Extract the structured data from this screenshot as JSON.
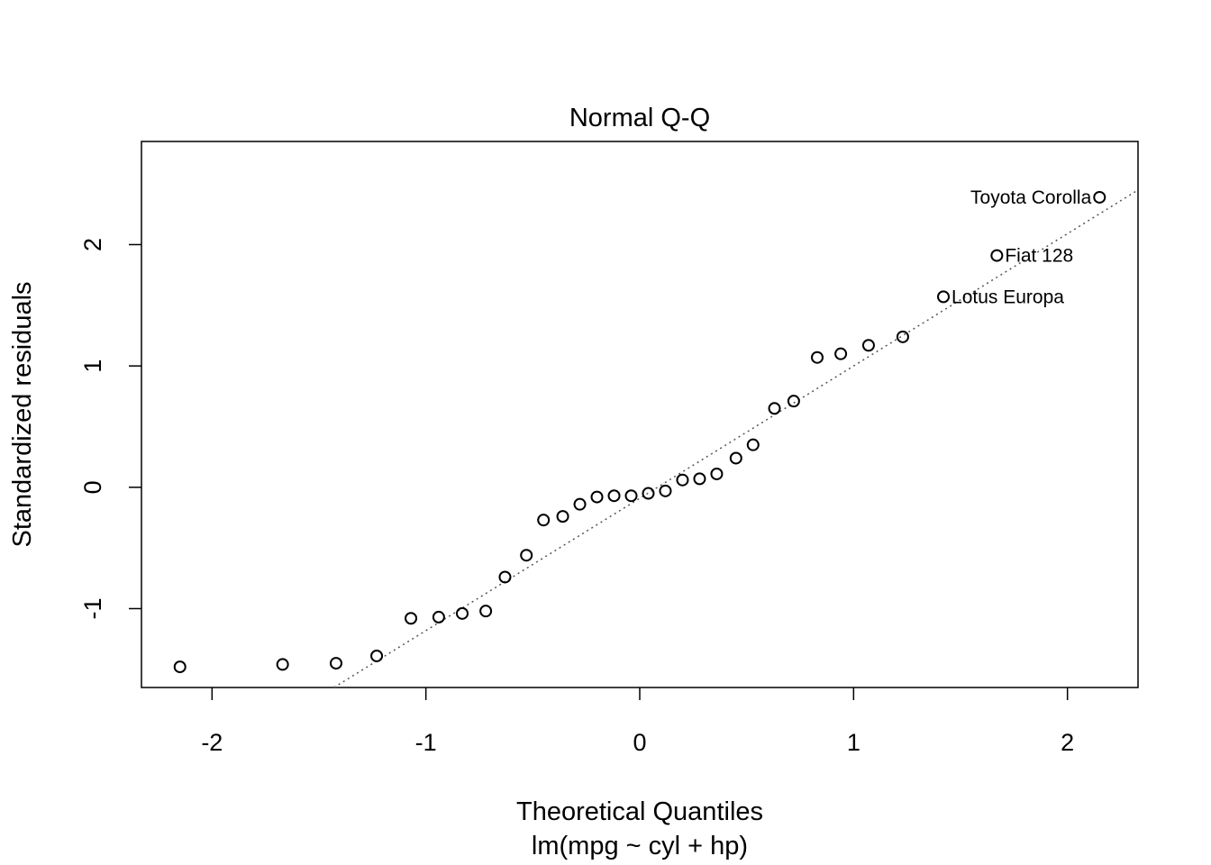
{
  "chart_data": {
    "type": "scatter",
    "title": "Normal Q-Q",
    "xlabel": "Theoretical Quantiles",
    "subtitle": "lm(mpg ~ cyl + hp)",
    "ylabel": "Standardized residuals",
    "xlim": [
      -2.33,
      2.33
    ],
    "ylim": [
      -1.65,
      2.85
    ],
    "xticks": [
      -2,
      -1,
      0,
      1,
      2
    ],
    "xtick_labels": [
      "-2",
      "-1",
      "0",
      "1",
      "2"
    ],
    "yticks": [
      -1,
      0,
      1,
      2
    ],
    "ytick_labels": [
      "-1",
      "0",
      "1",
      "2"
    ],
    "reference_line": {
      "style": "dotted",
      "x": [
        -1.43,
        2.33
      ],
      "y": [
        -1.65,
        2.45
      ]
    },
    "points": [
      {
        "x": -2.15,
        "y": -1.48
      },
      {
        "x": -1.67,
        "y": -1.46
      },
      {
        "x": -1.42,
        "y": -1.45
      },
      {
        "x": -1.23,
        "y": -1.39
      },
      {
        "x": -1.07,
        "y": -1.08
      },
      {
        "x": -0.94,
        "y": -1.07
      },
      {
        "x": -0.83,
        "y": -1.04
      },
      {
        "x": -0.72,
        "y": -1.02
      },
      {
        "x": -0.63,
        "y": -0.74
      },
      {
        "x": -0.53,
        "y": -0.56
      },
      {
        "x": -0.45,
        "y": -0.27
      },
      {
        "x": -0.36,
        "y": -0.24
      },
      {
        "x": -0.28,
        "y": -0.14
      },
      {
        "x": -0.2,
        "y": -0.08
      },
      {
        "x": -0.12,
        "y": -0.07
      },
      {
        "x": -0.04,
        "y": -0.07
      },
      {
        "x": 0.04,
        "y": -0.05
      },
      {
        "x": 0.12,
        "y": -0.03
      },
      {
        "x": 0.2,
        "y": 0.06
      },
      {
        "x": 0.28,
        "y": 0.07
      },
      {
        "x": 0.36,
        "y": 0.11
      },
      {
        "x": 0.45,
        "y": 0.24
      },
      {
        "x": 0.53,
        "y": 0.35
      },
      {
        "x": 0.63,
        "y": 0.65
      },
      {
        "x": 0.72,
        "y": 0.71
      },
      {
        "x": 0.83,
        "y": 1.07
      },
      {
        "x": 0.94,
        "y": 1.1
      },
      {
        "x": 1.07,
        "y": 1.17
      },
      {
        "x": 1.23,
        "y": 1.24
      },
      {
        "x": 1.42,
        "y": 1.57,
        "label": "Lotus Europa"
      },
      {
        "x": 1.67,
        "y": 1.91,
        "label": "Fiat 128"
      },
      {
        "x": 2.15,
        "y": 2.39,
        "label": "Toyota Corolla"
      }
    ]
  }
}
